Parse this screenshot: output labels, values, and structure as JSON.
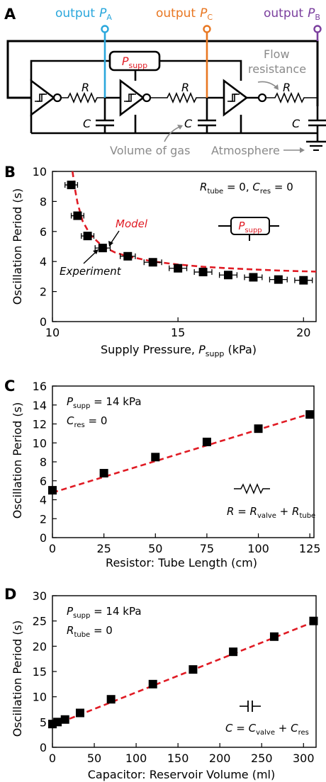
{
  "colors": {
    "output_a": "#2aa7dc",
    "output_c": "#e87722",
    "output_b": "#7b3f9e",
    "model": "#e01b24",
    "gray": "#8a8a8a",
    "marker": "#000000"
  },
  "panel_a": {
    "letter": "A",
    "output_word": "output",
    "output_a_sym": "P",
    "output_a_sub": "A",
    "output_c_sym": "P",
    "output_c_sub": "C",
    "output_b_sym": "P",
    "output_b_sub": "B",
    "psupp_sym": "P",
    "psupp_sub": "supp",
    "r_label": "R",
    "c_label": "C",
    "flow_resistance_1": "Flow",
    "flow_resistance_2": "resistance",
    "volume_of_gas": "Volume of gas",
    "atmosphere": "Atmosphere"
  },
  "chart_data": [
    {
      "panel": "B",
      "type": "scatter",
      "xlabel": "Supply Pressure, ",
      "xlabel_sym": "P",
      "xlabel_sub": "supp",
      "xlabel_unit": " (kPa)",
      "ylabel": "Oscillation Period (s)",
      "xlim": [
        10,
        20.5
      ],
      "ylim": [
        0,
        10
      ],
      "xticks": [
        10,
        15,
        20
      ],
      "yticks": [
        0,
        2,
        4,
        6,
        8,
        10
      ],
      "condition_1": "R",
      "condition_1_sub": "tube",
      "condition_1_rest": " = 0, ",
      "condition_2": "C",
      "condition_2_sub": "res",
      "condition_2_rest": " = 0",
      "legend_model": "Model",
      "legend_experiment": "Experiment",
      "psupp_sym": "P",
      "psupp_sub": "supp",
      "series": [
        {
          "kind": "markers",
          "x": [
            10.75,
            11.0,
            11.4,
            12.0,
            13.0,
            14.0,
            15.0,
            16.0,
            17.0,
            18.0,
            19.0,
            20.0
          ],
          "y": [
            9.1,
            7.05,
            5.7,
            4.9,
            4.35,
            3.95,
            3.55,
            3.3,
            3.1,
            2.95,
            2.8,
            2.75
          ],
          "xerr": [
            0.25,
            0.25,
            0.25,
            0.3,
            0.3,
            0.35,
            0.35,
            0.35,
            0.35,
            0.35,
            0.35,
            0.35
          ]
        },
        {
          "kind": "model",
          "x": [
            10.8,
            10.9,
            11.0,
            11.2,
            11.5,
            12.0,
            12.5,
            13.0,
            14.0,
            15.0,
            16.0,
            17.0,
            18.0,
            19.0,
            20.0,
            20.5
          ],
          "y": [
            10.0,
            8.8,
            7.9,
            6.7,
            5.8,
            5.0,
            4.6,
            4.35,
            4.0,
            3.8,
            3.65,
            3.55,
            3.47,
            3.4,
            3.35,
            3.33
          ]
        }
      ]
    },
    {
      "panel": "C",
      "type": "scatter",
      "xlabel": "Resistor: Tube Length (cm)",
      "ylabel": "Oscillation Period (s)",
      "xlim": [
        0,
        127
      ],
      "ylim": [
        0,
        16
      ],
      "xticks": [
        0,
        25,
        50,
        75,
        100,
        125
      ],
      "yticks": [
        0,
        2,
        4,
        6,
        8,
        10,
        12,
        14,
        16
      ],
      "condition_1": "P",
      "condition_1_sub": "supp",
      "condition_1_rest": " = 14 kPa",
      "condition_2": "C",
      "condition_2_sub": "res",
      "condition_2_rest": " = 0",
      "eq_lhs": "R",
      "eq_t1": "R",
      "eq_t1_sub": "valve",
      "eq_t2": "R",
      "eq_t2_sub": "tube",
      "series": [
        {
          "kind": "markers",
          "x": [
            0,
            25,
            50,
            75,
            100,
            125
          ],
          "y": [
            5.0,
            6.8,
            8.5,
            10.1,
            11.5,
            13.0
          ]
        },
        {
          "kind": "fit",
          "x": [
            0,
            127
          ],
          "y": [
            4.75,
            13.2
          ]
        }
      ]
    },
    {
      "panel": "D",
      "type": "scatter",
      "xlabel": "Capacitor: Reservoir Volume (ml)",
      "ylabel": "Oscillation Period (s)",
      "xlim": [
        0,
        315
      ],
      "ylim": [
        0,
        30
      ],
      "xticks": [
        0,
        50,
        100,
        150,
        200,
        250,
        300
      ],
      "yticks": [
        0,
        5,
        10,
        15,
        20,
        25,
        30
      ],
      "condition_1": "P",
      "condition_1_sub": "supp",
      "condition_1_rest": " = 14 kPa",
      "condition_2": "R",
      "condition_2_sub": "tube",
      "condition_2_rest": " = 0",
      "eq_lhs": "C",
      "eq_t1": "C",
      "eq_t1_sub": "valve",
      "eq_t2": "C",
      "eq_t2_sub": "res",
      "series": [
        {
          "kind": "markers",
          "x": [
            0,
            6,
            15,
            33,
            70,
            120,
            168,
            216,
            265,
            312
          ],
          "y": [
            4.6,
            5.0,
            5.5,
            6.8,
            9.5,
            12.5,
            15.4,
            18.9,
            21.9,
            25.0
          ]
        },
        {
          "kind": "fit",
          "x": [
            0,
            312
          ],
          "y": [
            4.3,
            24.8
          ]
        }
      ]
    }
  ]
}
